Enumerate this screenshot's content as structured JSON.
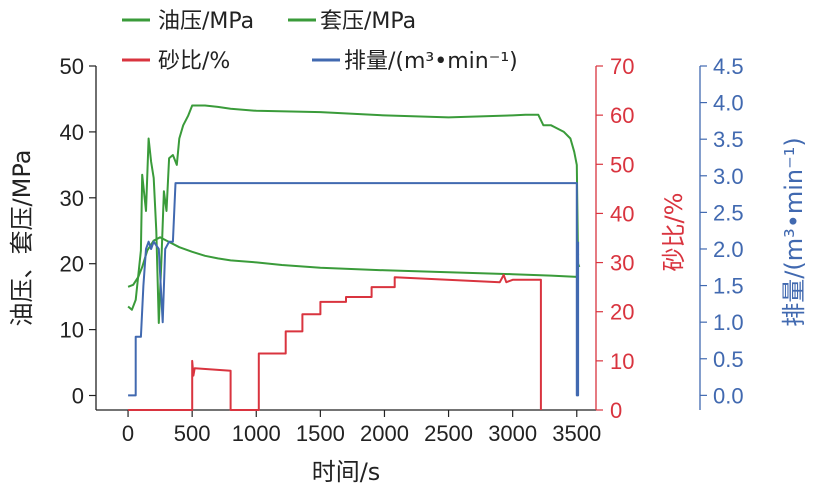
{
  "chart_data": {
    "type": "line",
    "xlabel": "时间/s",
    "x_ticks": [
      0,
      500,
      1000,
      1500,
      2000,
      2500,
      3000,
      3500
    ],
    "xlim": [
      -250,
      3650
    ],
    "axes": {
      "left": {
        "label": "油压、套压/MPa",
        "ylim": [
          -2.2,
          50
        ],
        "ticks": [
          0,
          10,
          20,
          30,
          40,
          50
        ],
        "color": "#222222"
      },
      "right1": {
        "label": "砂比/%",
        "ylim": [
          0,
          70
        ],
        "ticks": [
          0,
          10,
          20,
          30,
          40,
          50,
          60,
          70
        ],
        "color": "#d9343f"
      },
      "right2": {
        "label": "排量/(m³•min⁻¹)",
        "ylim": [
          -0.2,
          4.5
        ],
        "ticks": [
          "0.0",
          "0.5",
          "1.0",
          "1.5",
          "2.0",
          "2.5",
          "3.0",
          "3.5",
          "4.0",
          "4.5"
        ],
        "color": "#4169b0"
      }
    },
    "legend": {
      "placement": "top",
      "items": [
        {
          "label": "油压/MPa",
          "color": "#3a9b3a"
        },
        {
          "label": "套压/MPa",
          "color": "#3a9b3a"
        },
        {
          "label": "砂比/%",
          "color": "#d9343f"
        },
        {
          "label": "排量/(m³•min⁻¹)",
          "color": "#4169b0"
        }
      ]
    },
    "series": [
      {
        "name": "油压/MPa",
        "axis": "left",
        "color": "#3a9b3a",
        "x": [
          0,
          40,
          80,
          110,
          150,
          200,
          250,
          300,
          400,
          500,
          600,
          700,
          800,
          1000,
          1200,
          1500,
          2000,
          2500,
          3000,
          3300,
          3500,
          3510
        ],
        "y": [
          16.5,
          16.8,
          18,
          19.5,
          22,
          23.5,
          24,
          23.5,
          22.5,
          21.8,
          21.2,
          20.8,
          20.5,
          20.2,
          19.8,
          19.4,
          19.0,
          18.7,
          18.4,
          18.2,
          18.0,
          21.5
        ]
      },
      {
        "name": "套压/MPa",
        "axis": "left",
        "color": "#3a9b3a",
        "x": [
          0,
          30,
          60,
          100,
          110,
          140,
          160,
          180,
          200,
          220,
          240,
          260,
          280,
          300,
          320,
          350,
          380,
          400,
          430,
          470,
          500,
          600,
          700,
          800,
          1000,
          1500,
          2000,
          2500,
          3000,
          3100,
          3200,
          3240,
          3300,
          3400,
          3450,
          3480,
          3500,
          3510,
          3520
        ],
        "y": [
          13.5,
          13,
          14.5,
          22,
          33.5,
          28,
          39,
          35.5,
          33,
          25,
          11,
          20.5,
          31,
          28,
          36,
          36.5,
          35,
          39,
          41,
          42.5,
          44,
          44,
          43.8,
          43.5,
          43.2,
          43,
          42.5,
          42.2,
          42.5,
          42.6,
          42.6,
          41,
          41,
          40,
          39,
          37,
          35,
          20,
          19.5
        ]
      },
      {
        "name": "砂比/%",
        "axis": "right1",
        "color": "#d9343f",
        "x": [
          0,
          500,
          500,
          510,
          520,
          800,
          800,
          1020,
          1020,
          1230,
          1230,
          1360,
          1360,
          1500,
          1500,
          1700,
          1700,
          1900,
          1900,
          2080,
          2080,
          2900,
          2930,
          2950,
          3000,
          3220,
          3220
        ],
        "y": [
          0,
          0,
          10,
          7,
          8.5,
          8,
          0,
          0,
          11.5,
          11.5,
          16,
          16,
          19.5,
          19.5,
          22,
          22,
          23,
          23,
          25,
          25,
          27,
          26,
          27.5,
          26,
          26.5,
          26.5,
          0
        ]
      },
      {
        "name": "排量/(m³•min⁻¹)",
        "axis": "right2",
        "color": "#4169b0",
        "x": [
          0,
          60,
          60,
          100,
          120,
          140,
          160,
          180,
          200,
          240,
          270,
          290,
          320,
          350,
          370,
          380,
          3500,
          3500,
          3510,
          3510
        ],
        "y": [
          0,
          0,
          0.8,
          0.8,
          1.5,
          2.0,
          2.1,
          2.0,
          2.1,
          2.0,
          1.0,
          2.0,
          2.1,
          2.1,
          2.9,
          2.9,
          2.9,
          0.0,
          0.0,
          2.1
        ]
      }
    ]
  }
}
